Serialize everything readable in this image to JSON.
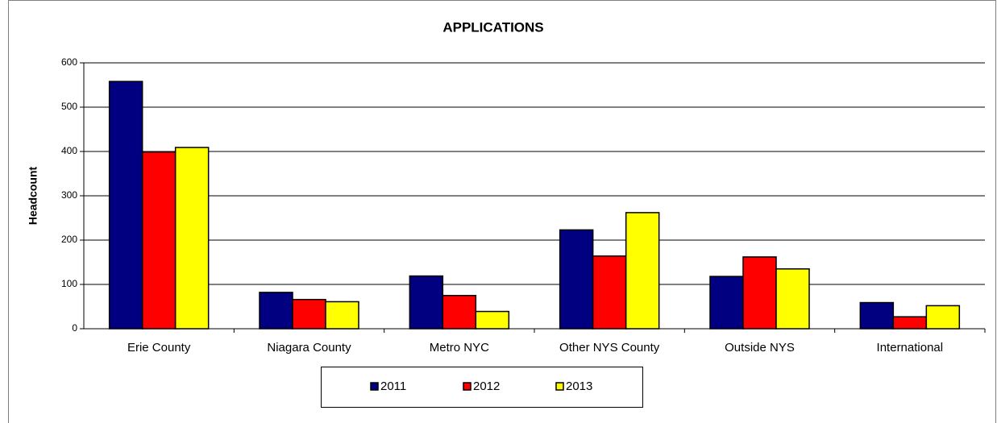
{
  "chart_data": {
    "type": "bar",
    "title": "APPLICATIONS",
    "y_label": "Headcount",
    "categories": [
      "Erie County",
      "Niagara County",
      "Metro NYC",
      "Other NYS County",
      "Outside NYS",
      "International"
    ],
    "series": [
      {
        "name": "2011",
        "color": "#000080",
        "values": [
          558,
          82,
          119,
          223,
          118,
          59
        ]
      },
      {
        "name": "2012",
        "color": "#ff0000",
        "values": [
          399,
          66,
          75,
          164,
          162,
          27
        ]
      },
      {
        "name": "2013",
        "color": "#ffff00",
        "values": [
          409,
          61,
          39,
          262,
          135,
          52
        ]
      }
    ],
    "ylim": [
      0,
      600
    ],
    "yticks": [
      0,
      100,
      200,
      300,
      400,
      500,
      600
    ],
    "grid": true,
    "legend": "bottom"
  }
}
